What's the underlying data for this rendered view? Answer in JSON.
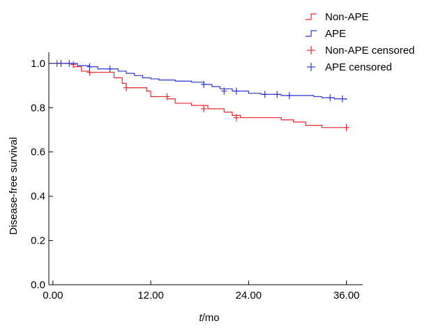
{
  "chart_data": {
    "type": "line",
    "subtype": "kaplan-meier step",
    "title": "",
    "xlabel_italic": "t",
    "xlabel_unit": "/mo",
    "ylabel": "Disease-free survival",
    "xlim": [
      -0.5,
      38
    ],
    "ylim": [
      0,
      1.05
    ],
    "x_ticks": [
      0,
      12,
      24,
      36
    ],
    "x_tick_labels": [
      "0.00",
      "12.00",
      "24.00",
      "36.00"
    ],
    "y_ticks": [
      0,
      0.2,
      0.4,
      0.6,
      0.8,
      1.0
    ],
    "y_tick_labels": [
      "0.0",
      "0.2",
      "0.4",
      "0.6",
      "0.8",
      "1.0"
    ],
    "grid": false,
    "legend_position": "top-right",
    "legend": [
      {
        "label": "Non-APE",
        "color": "#e8262a",
        "kind": "step"
      },
      {
        "label": "APE",
        "color": "#2a35d6",
        "kind": "step"
      },
      {
        "label": "Non-APE censored",
        "color": "#e8262a",
        "kind": "cross"
      },
      {
        "label": "APE censored",
        "color": "#2a35d6",
        "kind": "cross"
      }
    ],
    "series": [
      {
        "name": "Non-APE",
        "color": "#e8262a",
        "x": [
          0,
          2.5,
          3.5,
          4.5,
          7.5,
          8.5,
          9.0,
          11.5,
          12.0,
          14.0,
          15.0,
          17.0,
          19.0,
          21.0,
          22.0,
          23.0,
          28.0,
          29.5,
          31.0,
          33.0,
          36.0
        ],
        "y": [
          1.0,
          0.985,
          0.965,
          0.96,
          0.935,
          0.91,
          0.89,
          0.875,
          0.85,
          0.84,
          0.82,
          0.81,
          0.795,
          0.78,
          0.765,
          0.755,
          0.745,
          0.735,
          0.72,
          0.71,
          0.71
        ],
        "censored_x": [
          0.5,
          2.5,
          4.5,
          9.0,
          14.0,
          18.5,
          22.5,
          36.0
        ],
        "censored_y": [
          1.0,
          0.995,
          0.96,
          0.89,
          0.85,
          0.795,
          0.755,
          0.71
        ]
      },
      {
        "name": "APE",
        "color": "#2a35d6",
        "x": [
          0,
          3.0,
          4.5,
          5.5,
          8.0,
          9.0,
          10.0,
          11.0,
          12.0,
          13.0,
          15.0,
          17.0,
          18.5,
          19.5,
          20.5,
          22.0,
          24.0,
          25.5,
          28.0,
          30.5,
          32.0,
          33.0,
          34.5,
          36.0
        ],
        "y": [
          1.0,
          0.99,
          0.985,
          0.975,
          0.965,
          0.955,
          0.945,
          0.935,
          0.93,
          0.925,
          0.92,
          0.915,
          0.905,
          0.895,
          0.885,
          0.875,
          0.865,
          0.86,
          0.855,
          0.855,
          0.85,
          0.845,
          0.84,
          0.835
        ],
        "censored_x": [
          1.0,
          2.0,
          4.5,
          7.0,
          18.5,
          21.0,
          22.5,
          26.0,
          27.5,
          29.0,
          34.0,
          35.5
        ],
        "censored_y": [
          1.0,
          1.0,
          0.985,
          0.975,
          0.905,
          0.875,
          0.875,
          0.86,
          0.86,
          0.855,
          0.845,
          0.84
        ]
      }
    ]
  }
}
